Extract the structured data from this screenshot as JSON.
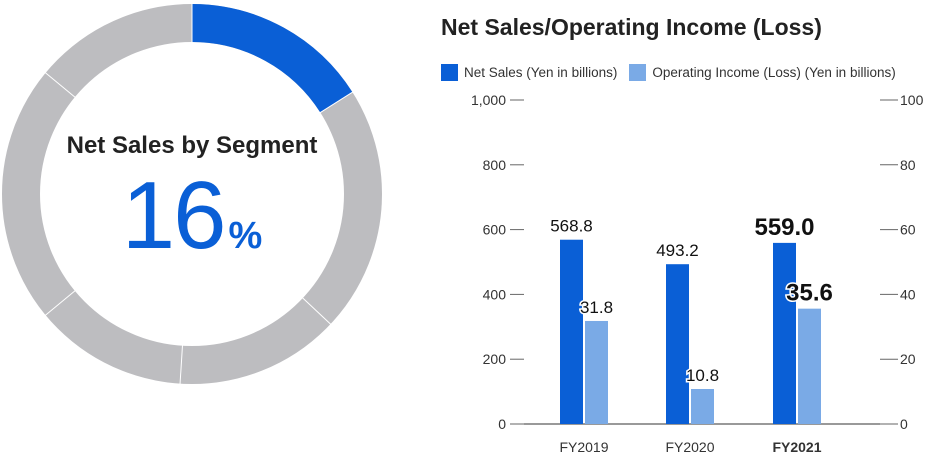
{
  "donut": {
    "title": "Net Sales by Segment",
    "value": "16",
    "unit": "%",
    "share": 0.16,
    "colors": {
      "segment": "#0a5fd6",
      "rest": "#bdbdc0",
      "text": "#0a5fd6"
    }
  },
  "chart_data": {
    "type": "bar",
    "title": "Net Sales/Operating Income (Loss)",
    "categories": [
      "FY2019",
      "FY2020",
      "FY2021"
    ],
    "highlight_category": "FY2021",
    "series": [
      {
        "name": "Net Sales (Yen in billions)",
        "values": [
          568.8,
          493.2,
          559.0
        ],
        "labels": [
          "568.8",
          "493.2",
          "559.0"
        ],
        "axis": "left",
        "color": "#0a5fd6"
      },
      {
        "name": "Operating Income (Loss) (Yen in billions)",
        "values": [
          31.8,
          10.8,
          35.6
        ],
        "labels": [
          "31.8",
          "10.8",
          "35.6"
        ],
        "axis": "right",
        "color": "#7aaae6"
      }
    ],
    "y_left": {
      "ylim": [
        0,
        1000
      ],
      "ticks": [
        "0",
        "200",
        "400",
        "600",
        "800",
        "1,000"
      ]
    },
    "y_right": {
      "ylim": [
        0,
        100
      ],
      "ticks": [
        "0",
        "20",
        "40",
        "60",
        "80",
        "100"
      ]
    },
    "legend_position": "top",
    "grid": false
  }
}
